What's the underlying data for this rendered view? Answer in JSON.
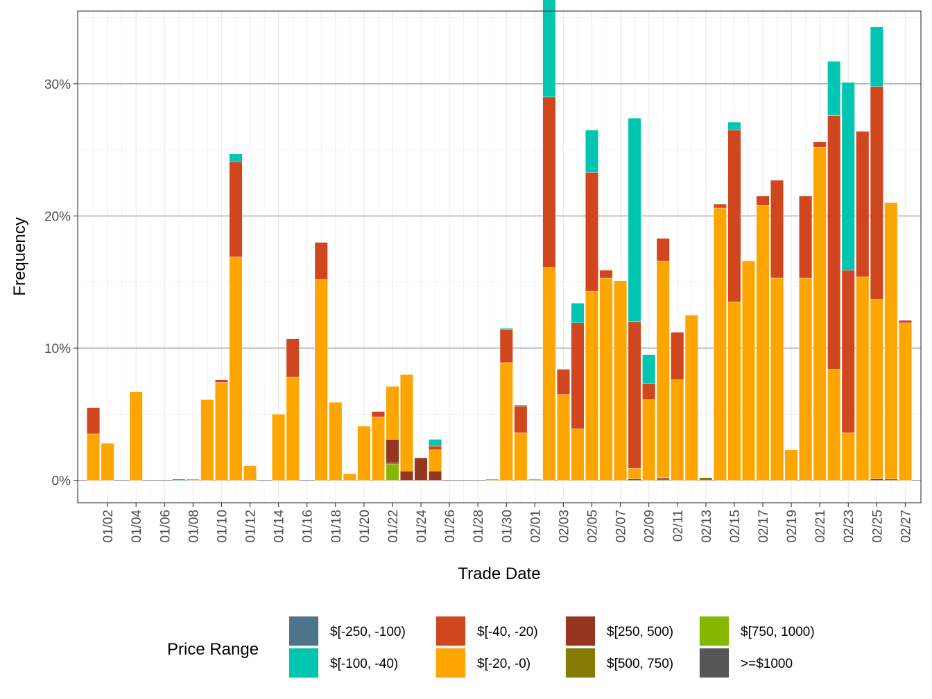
{
  "chart_data": {
    "type": "bar",
    "stacked": true,
    "xlabel": "Trade Date",
    "ylabel": "Frequency",
    "y_unit": "%",
    "ylim": [
      -1.7,
      35.5
    ],
    "y_ticks": [
      0,
      10,
      20,
      30
    ],
    "y_tick_labels": [
      "0%",
      "10%",
      "20%",
      "30%"
    ],
    "x_tick_labels": [
      "01/02",
      "01/04",
      "01/06",
      "01/08",
      "01/10",
      "01/12",
      "01/14",
      "01/16",
      "01/18",
      "01/20",
      "01/22",
      "01/24",
      "01/26",
      "01/28",
      "01/30",
      "02/01",
      "02/03",
      "02/05",
      "02/07",
      "02/09",
      "02/11",
      "02/13",
      "02/15",
      "02/17",
      "02/19",
      "02/21",
      "02/23",
      "02/25",
      "02/27"
    ],
    "grid": true,
    "legend": {
      "title": "Price Range",
      "position": "bottom",
      "entries": [
        {
          "label": "$[-250, -100)",
          "color": "#4e7489"
        },
        {
          "label": "$[-100, -40)",
          "color": "#00c5b0"
        },
        {
          "label": "$[-40, -20)",
          "color": "#d0461f"
        },
        {
          "label": "$[-20, -0)",
          "color": "#ffa500"
        },
        {
          "label": "$[250, 500)",
          "color": "#963520"
        },
        {
          "label": "$[500, 750)",
          "color": "#857b05"
        },
        {
          "label": "$[750, 1000)",
          "color": "#86b800"
        },
        {
          "label": ">=$1000",
          "color": "#565656"
        }
      ]
    },
    "categories": [
      "01/01",
      "01/02",
      "01/03",
      "01/04",
      "01/05",
      "01/06",
      "01/07",
      "01/08",
      "01/09",
      "01/10",
      "01/11",
      "01/12",
      "01/13",
      "01/14",
      "01/15",
      "01/16",
      "01/17",
      "01/18",
      "01/19",
      "01/20",
      "01/21",
      "01/22",
      "01/23",
      "01/24",
      "01/25",
      "01/26",
      "01/27",
      "01/28",
      "01/29",
      "01/30",
      "01/31",
      "02/01",
      "02/02",
      "02/03",
      "02/04",
      "02/05",
      "02/06",
      "02/07",
      "02/08",
      "02/09",
      "02/10",
      "02/11",
      "02/12",
      "02/13",
      "02/14",
      "02/15",
      "02/16",
      "02/17",
      "02/18",
      "02/19",
      "02/20",
      "02/21",
      "02/22",
      "02/23",
      "02/24",
      "02/25",
      "02/26",
      "02/27"
    ],
    "series": [
      {
        "name": "$[-250, -100)",
        "color": "#4e7489",
        "values": [
          0,
          0,
          0,
          0,
          0,
          0,
          0,
          0,
          0,
          0,
          0,
          0,
          0,
          0,
          0,
          0,
          0,
          0,
          0,
          0,
          0,
          0,
          0,
          0,
          0,
          0,
          0,
          0,
          0,
          0,
          0,
          0,
          0,
          0,
          0,
          0,
          0,
          0,
          0,
          0,
          0,
          0,
          0,
          0,
          0,
          0,
          0,
          0,
          0,
          0,
          0,
          0,
          0,
          0,
          0,
          0,
          0,
          0
        ]
      },
      {
        "name": "$[-100, -40)",
        "color": "#00c5b0",
        "values": [
          0,
          0,
          0,
          0,
          0,
          0,
          0.1,
          0,
          0,
          0,
          0.6,
          0,
          0,
          0,
          0,
          0,
          0,
          0,
          0,
          0,
          0,
          0,
          0,
          0,
          0.5,
          0,
          0,
          0,
          0,
          0.1,
          0.1,
          0,
          7.6,
          0,
          1.5,
          3.2,
          0,
          0,
          15.4,
          2.2,
          0,
          0,
          0,
          0,
          0,
          0.6,
          0,
          0,
          0,
          0,
          0,
          0,
          4.1,
          14.2,
          0,
          4.5,
          0,
          0
        ]
      },
      {
        "name": "$[-40, -20)",
        "color": "#d0461f",
        "values": [
          2,
          0,
          0,
          0,
          0,
          0,
          0,
          0,
          0,
          0.2,
          7.2,
          0,
          0,
          0,
          2.9,
          0,
          2.8,
          0,
          0,
          0,
          0.4,
          0,
          0,
          0,
          0.3,
          0,
          0,
          0,
          0,
          2.5,
          2,
          0,
          12.9,
          1.9,
          8,
          9,
          0.6,
          0,
          11.1,
          1.2,
          1.7,
          3.6,
          0,
          0,
          0.3,
          13,
          0,
          0.7,
          7.4,
          0,
          6.2,
          0.4,
          19.2,
          12.3,
          11,
          16.1,
          0,
          0.2
        ]
      },
      {
        "name": "$[-20, -0)",
        "color": "#ffa500",
        "values": [
          3.5,
          2.8,
          0,
          6.7,
          0,
          0,
          0,
          0.1,
          6.1,
          7.4,
          16.9,
          1.1,
          0,
          5,
          7.8,
          0,
          15.2,
          5.9,
          0.5,
          4.1,
          4.8,
          4,
          7.3,
          0,
          1.6,
          0,
          0,
          0,
          0.1,
          8.9,
          3.6,
          0.1,
          16.1,
          6.5,
          3.9,
          14.3,
          15.3,
          15.1,
          0.8,
          6.1,
          16.4,
          7.6,
          12.5,
          0,
          20.6,
          13.5,
          16.6,
          20.8,
          15.3,
          2.3,
          15.3,
          25.2,
          8.4,
          3.6,
          15.4,
          13.6,
          20.9,
          11.9
        ]
      },
      {
        "name": "$[250, 500)",
        "color": "#963520",
        "values": [
          0,
          0,
          0,
          0,
          0,
          0,
          0,
          0,
          0,
          0,
          0,
          0,
          0,
          0,
          0,
          0,
          0,
          0,
          0,
          0,
          0,
          1.8,
          0.7,
          1.7,
          0.7,
          0,
          0,
          0,
          0,
          0,
          0,
          0,
          0,
          0,
          0,
          0,
          0,
          0,
          0,
          0,
          0.1,
          0,
          0,
          0,
          0,
          0,
          0,
          0,
          0,
          0,
          0,
          0,
          0,
          0,
          0,
          0.1,
          0,
          0
        ]
      },
      {
        "name": "$[500, 750)",
        "color": "#857b05",
        "values": [
          0,
          0,
          0,
          0,
          0,
          0,
          0,
          0,
          0,
          0,
          0,
          0,
          0,
          0,
          0,
          0,
          0,
          0,
          0,
          0,
          0,
          0.1,
          0,
          0,
          0,
          0,
          0,
          0,
          0,
          0,
          0,
          0,
          0,
          0,
          0,
          0,
          0,
          0,
          0,
          0,
          0.1,
          0,
          0,
          0.2,
          0,
          0,
          0,
          0,
          0,
          0,
          0,
          0,
          0,
          0,
          0,
          0,
          0.1,
          0
        ]
      },
      {
        "name": "$[750, 1000)",
        "color": "#86b800",
        "values": [
          0,
          0,
          0,
          0,
          0,
          0,
          0,
          0,
          0,
          0,
          0,
          0,
          0,
          0,
          0,
          0,
          0,
          0,
          0,
          0,
          0,
          1.2,
          0,
          0,
          0,
          0,
          0,
          0,
          0,
          0,
          0,
          0,
          0,
          0,
          0,
          0,
          0,
          0,
          0,
          0,
          0,
          0,
          0,
          0,
          0,
          0,
          0,
          0,
          0,
          0,
          0,
          0,
          0,
          0,
          0,
          0,
          0,
          0
        ]
      },
      {
        "name": ">=$1000",
        "color": "#565656",
        "values": [
          0,
          0,
          0,
          0,
          0,
          0,
          0,
          0,
          0,
          0,
          0,
          0,
          0,
          0,
          0,
          0,
          0,
          0,
          0,
          0,
          0,
          0,
          0,
          0,
          0,
          0,
          0,
          0,
          0,
          0,
          0,
          0,
          0,
          0,
          0,
          0,
          0,
          0,
          0.1,
          0,
          0,
          0,
          0,
          0,
          0,
          0,
          0,
          0,
          0,
          0,
          0,
          0,
          0,
          0,
          0,
          0,
          0,
          0
        ]
      }
    ]
  }
}
